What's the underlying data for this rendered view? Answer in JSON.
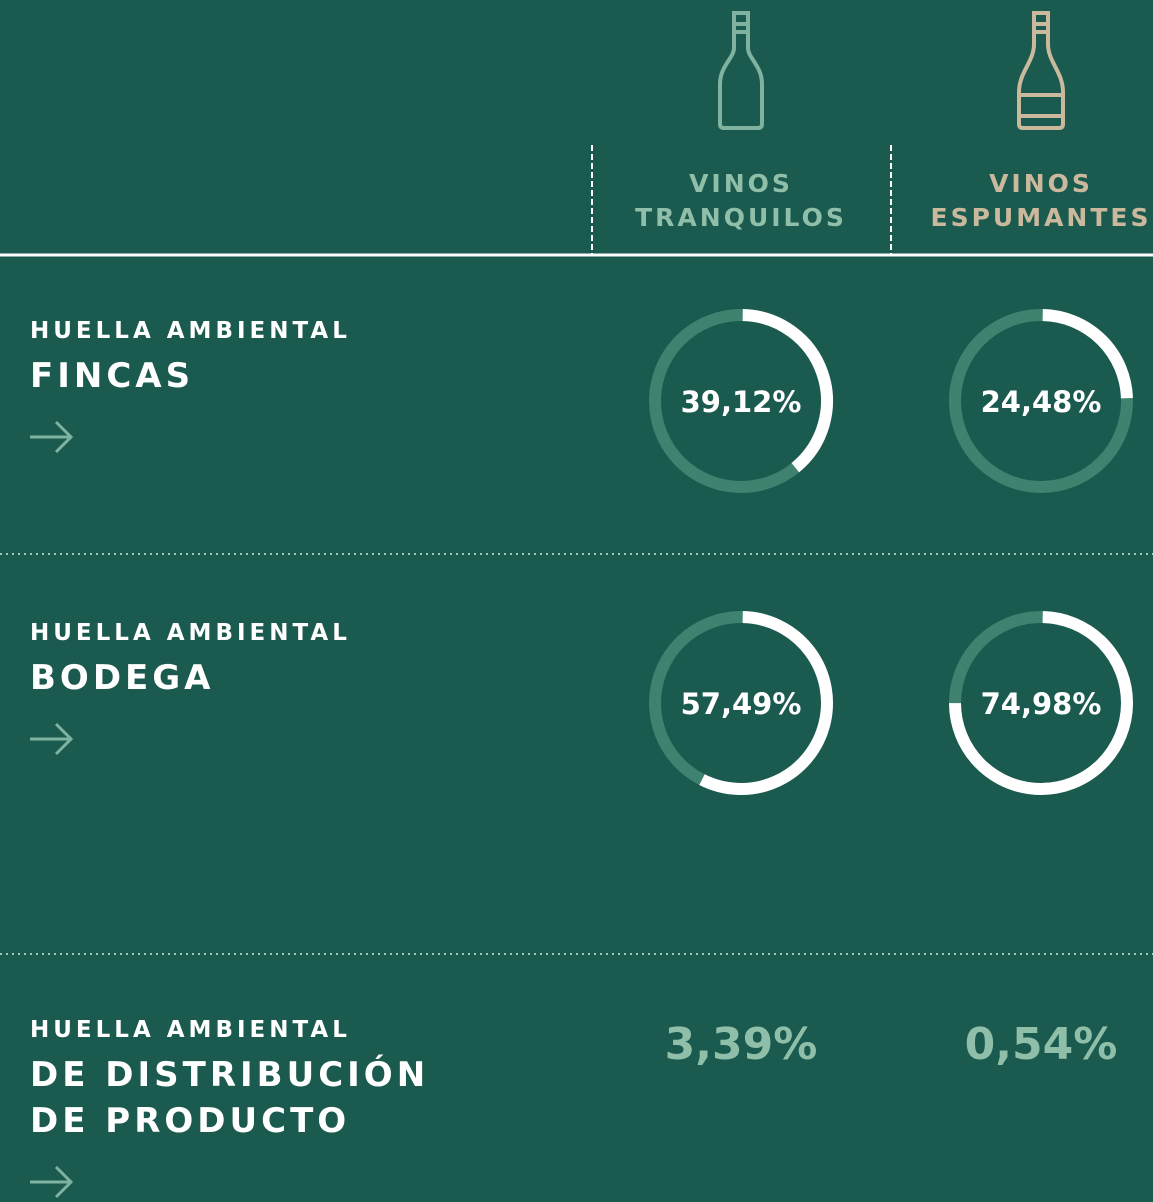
{
  "columns": [
    {
      "title": [
        "VINOS",
        "TRANQUILOS"
      ]
    },
    {
      "title": [
        "VINOS",
        "ESPUMANTES"
      ]
    }
  ],
  "rows": [
    {
      "kicker": "HUELLA AMBIENTAL",
      "title": [
        "FINCAS"
      ],
      "values": [
        {
          "value": 39.12,
          "label": "39,12%"
        },
        {
          "value": 24.48,
          "label": "24,48%"
        }
      ]
    },
    {
      "kicker": "HUELLA AMBIENTAL",
      "title": [
        "BODEGA"
      ],
      "values": [
        {
          "value": 57.49,
          "label": "57,49%"
        },
        {
          "value": 74.98,
          "label": "74,98%"
        }
      ]
    },
    {
      "kicker": "HUELLA AMBIENTAL",
      "title": [
        "DE DISTRIBUCIÓN",
        "DE PRODUCTO"
      ],
      "values": [
        "3,39%",
        "0,54%"
      ]
    }
  ]
}
